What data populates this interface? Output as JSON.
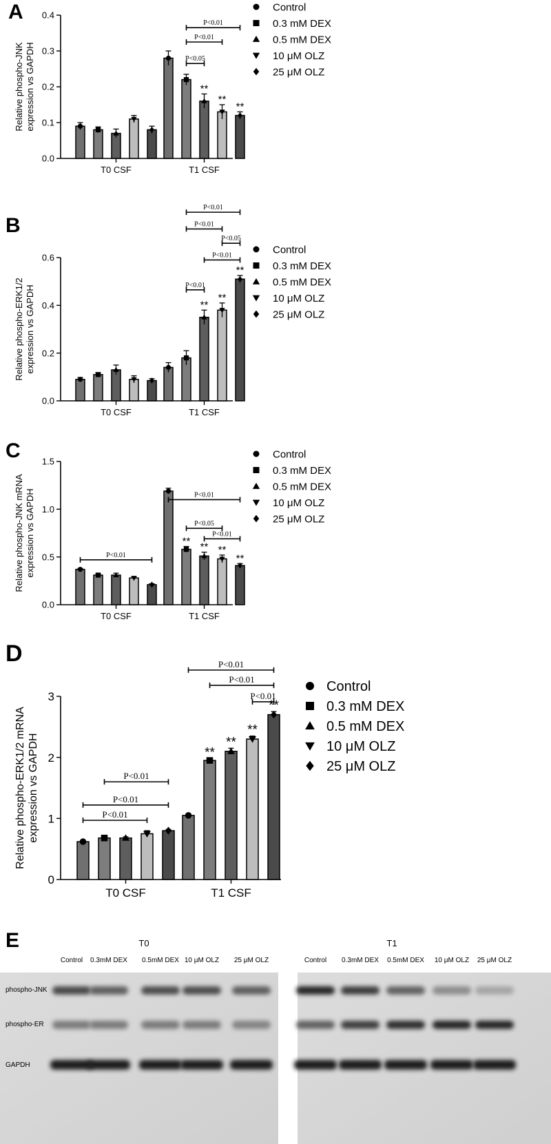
{
  "legend": [
    "Control",
    "0.3 mM DEX",
    "0.5 mM DEX",
    "10 μM OLZ",
    "25 μM OLZ"
  ],
  "colors": {
    "bars": [
      "#707070",
      "#7d7d7d",
      "#5e5e5e",
      "#bdbdbd",
      "#4a4a4a"
    ],
    "axis": "#000000"
  },
  "chart_data": [
    {
      "panel": "A",
      "type": "bar",
      "categories": [
        "T0 CSF",
        "T1 CSF"
      ],
      "ylabel": [
        "Relative phospho-JNK",
        "expression vs GAPDH"
      ],
      "ylim": [
        0,
        0.4
      ],
      "yticks": [
        "0.0",
        "0.1",
        "0.2",
        "0.3",
        "0.4"
      ],
      "series": [
        {
          "name": "Control",
          "values": [
            0.09,
            0.28
          ],
          "errors": [
            0.01,
            0.02
          ]
        },
        {
          "name": "0.3 mM DEX",
          "values": [
            0.08,
            0.22
          ],
          "errors": [
            0.008,
            0.015
          ]
        },
        {
          "name": "0.5 mM DEX",
          "values": [
            0.07,
            0.16
          ],
          "errors": [
            0.012,
            0.02
          ]
        },
        {
          "name": "10 μM OLZ",
          "values": [
            0.11,
            0.13
          ],
          "errors": [
            0.01,
            0.02
          ]
        },
        {
          "name": "25 μM OLZ",
          "values": [
            0.08,
            0.12
          ],
          "errors": [
            0.01,
            0.01
          ]
        }
      ],
      "stars": [
        {
          "group": 1,
          "series": 2,
          "text": "**"
        },
        {
          "group": 1,
          "series": 3,
          "text": "**"
        },
        {
          "group": 1,
          "series": 4,
          "text": "**"
        }
      ],
      "brackets": [
        {
          "group": 1,
          "from": 1,
          "to": 4,
          "y": 0.365,
          "label": "P<0.01"
        },
        {
          "group": 1,
          "from": 1,
          "to": 3,
          "y": 0.325,
          "label": "P<0.01"
        },
        {
          "group": 1,
          "from": 1,
          "to": 2,
          "y": 0.265,
          "label": "P<0.05"
        }
      ]
    },
    {
      "panel": "B",
      "type": "bar",
      "categories": [
        "T0 CSF",
        "T1 CSF"
      ],
      "ylabel": [
        "Relative phospho-ERK1/2",
        "expression vs GAPDH"
      ],
      "ylim": [
        0,
        0.6
      ],
      "yticks": [
        "0.0",
        "0.2",
        "0.4",
        "0.6"
      ],
      "series": [
        {
          "name": "Control",
          "values": [
            0.09,
            0.14
          ],
          "errors": [
            0.008,
            0.02
          ]
        },
        {
          "name": "0.3 mM DEX",
          "values": [
            0.11,
            0.18
          ],
          "errors": [
            0.008,
            0.03
          ]
        },
        {
          "name": "0.5 mM DEX",
          "values": [
            0.13,
            0.35
          ],
          "errors": [
            0.02,
            0.03
          ]
        },
        {
          "name": "10 μM OLZ",
          "values": [
            0.09,
            0.38
          ],
          "errors": [
            0.015,
            0.03
          ]
        },
        {
          "name": "25 μM OLZ",
          "values": [
            0.085,
            0.51
          ],
          "errors": [
            0.008,
            0.015
          ]
        }
      ],
      "stars": [
        {
          "group": 1,
          "series": 2,
          "text": "**"
        },
        {
          "group": 1,
          "series": 3,
          "text": "**"
        },
        {
          "group": 1,
          "series": 4,
          "text": "**"
        }
      ],
      "brackets": [
        {
          "group": 1,
          "from": 1,
          "to": 4,
          "y": 0.79,
          "label": "P<0.01"
        },
        {
          "group": 1,
          "from": 1,
          "to": 3,
          "y": 0.72,
          "label": "P<0.01"
        },
        {
          "group": 1,
          "from": 3,
          "to": 4,
          "y": 0.66,
          "label": "P<0.05"
        },
        {
          "group": 1,
          "from": 2,
          "to": 4,
          "y": 0.59,
          "label": "P<0.01"
        },
        {
          "group": 1,
          "from": 1,
          "to": 2,
          "y": 0.465,
          "label": "P<0.01"
        }
      ]
    },
    {
      "panel": "C",
      "type": "bar",
      "categories": [
        "T0 CSF",
        "T1 CSF"
      ],
      "ylabel": [
        "Relative phospho-JNK mRNA",
        "expression vs GAPDH"
      ],
      "ylim": [
        0,
        1.5
      ],
      "yticks": [
        "0.0",
        "0.5",
        "1.0",
        "1.5"
      ],
      "series": [
        {
          "name": "Control",
          "values": [
            0.37,
            1.19
          ],
          "errors": [
            0.01,
            0.03
          ]
        },
        {
          "name": "0.3 mM DEX",
          "values": [
            0.31,
            0.58
          ],
          "errors": [
            0.015,
            0.03
          ]
        },
        {
          "name": "0.5 mM DEX",
          "values": [
            0.31,
            0.51
          ],
          "errors": [
            0.02,
            0.04
          ]
        },
        {
          "name": "10 μM OLZ",
          "values": [
            0.28,
            0.48
          ],
          "errors": [
            0.015,
            0.04
          ]
        },
        {
          "name": "25 μM OLZ",
          "values": [
            0.21,
            0.41
          ],
          "errors": [
            0.01,
            0.02
          ]
        }
      ],
      "stars": [
        {
          "group": 1,
          "series": 1,
          "text": "**"
        },
        {
          "group": 1,
          "series": 2,
          "text": "**"
        },
        {
          "group": 1,
          "series": 3,
          "text": "**"
        },
        {
          "group": 1,
          "series": 4,
          "text": "**"
        }
      ],
      "brackets": [
        {
          "group": 1,
          "from": 0,
          "to": 4,
          "y": 1.1,
          "label": "P<0.01"
        },
        {
          "group": 1,
          "from": 1,
          "to": 3,
          "y": 0.8,
          "label": "P<0.05"
        },
        {
          "group": 1,
          "from": 2,
          "to": 4,
          "y": 0.69,
          "label": "P<0.01"
        },
        {
          "group": 0,
          "from": 0,
          "to": 4,
          "y": 0.47,
          "label": "P<0.01"
        }
      ]
    },
    {
      "panel": "D",
      "type": "bar",
      "categories": [
        "T0 CSF",
        "T1 CSF"
      ],
      "ylabel": [
        "Relative phospho-ERK1/2 mRNA",
        "expression vs GAPDH"
      ],
      "ylim": [
        0,
        3
      ],
      "yticks": [
        "0",
        "1",
        "2",
        "3"
      ],
      "series": [
        {
          "name": "Control",
          "values": [
            0.62,
            1.05
          ],
          "errors": [
            0.015,
            0.02
          ]
        },
        {
          "name": "0.3 mM DEX",
          "values": [
            0.68,
            1.95
          ],
          "errors": [
            0.02,
            0.03
          ]
        },
        {
          "name": "0.5 mM DEX",
          "values": [
            0.68,
            2.1
          ],
          "errors": [
            0.02,
            0.05
          ]
        },
        {
          "name": "10 μM OLZ",
          "values": [
            0.75,
            2.3
          ],
          "errors": [
            0.05,
            0.05
          ]
        },
        {
          "name": "25 μM OLZ",
          "values": [
            0.8,
            2.7
          ],
          "errors": [
            0.02,
            0.05
          ]
        }
      ],
      "stars": [
        {
          "group": 1,
          "series": 1,
          "text": "**"
        },
        {
          "group": 1,
          "series": 2,
          "text": "**"
        },
        {
          "group": 1,
          "series": 3,
          "text": "**"
        },
        {
          "group": 1,
          "series": 4,
          "text": "**"
        }
      ],
      "brackets": [
        {
          "group": 1,
          "from": 0,
          "to": 4,
          "y": 3.43,
          "label": "P<0.01"
        },
        {
          "group": 1,
          "from": 1,
          "to": 4,
          "y": 3.18,
          "label": "P<0.01"
        },
        {
          "group": 1,
          "from": 3,
          "to": 4,
          "y": 2.91,
          "label": "P<0.01"
        },
        {
          "group": 0,
          "from": 1,
          "to": 4,
          "y": 1.6,
          "label": "P<0.01"
        },
        {
          "group": 0,
          "from": 0,
          "to": 4,
          "y": 1.22,
          "label": "P<0.01"
        },
        {
          "group": 0,
          "from": 0,
          "to": 3,
          "y": 0.97,
          "label": "P<0.01"
        }
      ]
    }
  ],
  "blot": {
    "panel": "E",
    "groups": [
      {
        "title": "T0",
        "lanes": [
          "Control",
          "0.3mM DEX",
          "0.5mM DEX",
          "10 μM OLZ",
          "25 μM OLZ"
        ],
        "intensity": {
          "jnk": [
            0.75,
            0.62,
            0.72,
            0.72,
            0.62
          ],
          "erk": [
            0.45,
            0.45,
            0.45,
            0.45,
            0.4
          ],
          "gapdh": [
            1.0,
            1.0,
            1.0,
            1.0,
            1.0
          ]
        }
      },
      {
        "title": "T1",
        "lanes": [
          "Control",
          "0.3mM DEX",
          "0.5mM DEX",
          "10 μM OLZ",
          "25 μM OLZ"
        ],
        "intensity": {
          "jnk": [
            0.95,
            0.82,
            0.6,
            0.35,
            0.2
          ],
          "erk": [
            0.6,
            0.8,
            0.9,
            0.95,
            0.95
          ],
          "gapdh": [
            1.0,
            1.0,
            1.0,
            1.0,
            1.0
          ]
        }
      }
    ],
    "row_labels": [
      "phospho-JNK",
      "phospho-ER",
      "GAPDH"
    ]
  }
}
